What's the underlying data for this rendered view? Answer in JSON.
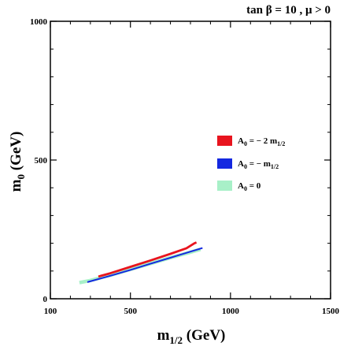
{
  "chart_data": {
    "type": "line",
    "title": "tan β = 10 ,  μ > 0",
    "xlabel": {
      "main": "m",
      "sub": "1/2",
      "unit": " (GeV)"
    },
    "ylabel": {
      "main": "m",
      "sub": "0",
      "unit": " (GeV)"
    },
    "xlim": [
      100,
      1500
    ],
    "ylim": [
      0,
      1000
    ],
    "xticks": [
      100,
      500,
      1000,
      1500
    ],
    "yticks": [
      0,
      500,
      1000
    ],
    "grid": false,
    "legend_position": "right",
    "series": [
      {
        "key": "a0_m2",
        "legend": {
          "main": "A",
          "sub": "0",
          "eq": " = − 2 m",
          "sub2": "1/2"
        },
        "color": "#e8141e",
        "width": 2.8,
        "points": [
          [
            340,
            80
          ],
          [
            400,
            92
          ],
          [
            500,
            115
          ],
          [
            600,
            138
          ],
          [
            700,
            162
          ],
          [
            780,
            182
          ],
          [
            820,
            200
          ],
          [
            830,
            203
          ]
        ]
      },
      {
        "key": "a0_m1",
        "legend": {
          "main": "A",
          "sub": "0",
          "eq": " = − m",
          "sub2": "1/2"
        },
        "color": "#1428e0",
        "width": 2.0,
        "points": [
          [
            285,
            60
          ],
          [
            400,
            83
          ],
          [
            500,
            104
          ],
          [
            600,
            126
          ],
          [
            700,
            148
          ],
          [
            800,
            170
          ],
          [
            860,
            183
          ]
        ]
      },
      {
        "key": "a0_0",
        "legend": {
          "main": "A",
          "sub": "0",
          "eq": " = 0",
          "sub2": ""
        },
        "color": "#a8f0c8",
        "width": 4.5,
        "points": [
          [
            245,
            58
          ],
          [
            300,
            66
          ],
          [
            400,
            85
          ],
          [
            500,
            106
          ],
          [
            600,
            127
          ],
          [
            700,
            148
          ],
          [
            800,
            168
          ],
          [
            850,
            178
          ]
        ]
      }
    ]
  }
}
